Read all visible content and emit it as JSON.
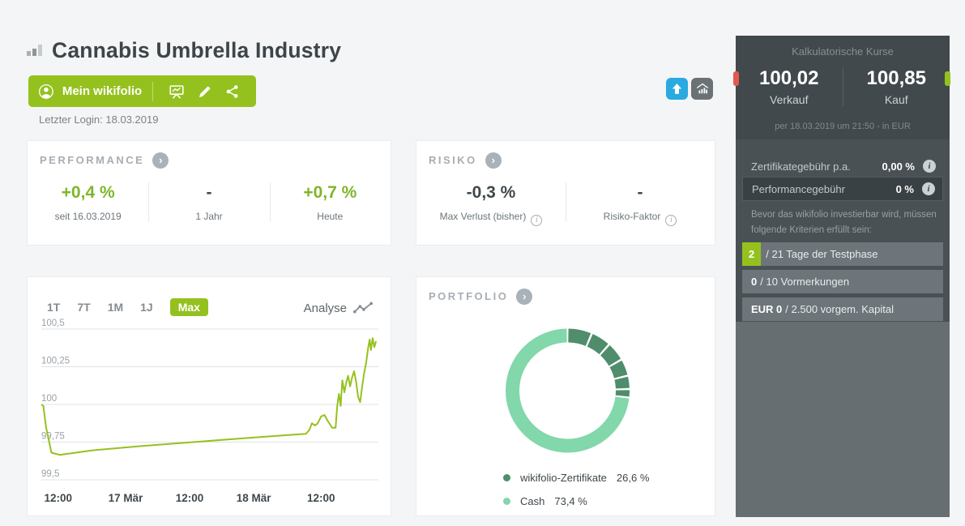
{
  "header": {
    "title": "Cannabis Umbrella Industry",
    "my_wikifolio_label": "Mein wikifolio",
    "last_login": "Letzter Login: 18.03.2019"
  },
  "performance": {
    "title": "PERFORMANCE",
    "items": [
      {
        "value": "+0,4 %",
        "label": "seit 16.03.2019"
      },
      {
        "value": "-",
        "label": "1 Jahr"
      },
      {
        "value": "+0,7 %",
        "label": "Heute"
      }
    ]
  },
  "risk": {
    "title": "RISIKO",
    "items": [
      {
        "value": "-0,3 %",
        "label": "Max Verlust (bisher)"
      },
      {
        "value": "-",
        "label": "Risiko-Faktor"
      }
    ]
  },
  "chart_card": {
    "ranges": [
      "1T",
      "7T",
      "1M",
      "1J",
      "Max"
    ],
    "selected_range": "Max",
    "analyse_label": "Analyse"
  },
  "chart_data": {
    "type": "line",
    "title": "wikifolio price history",
    "y_ticks": [
      "100,5",
      "100,25",
      "100",
      "99,75",
      "99,5"
    ],
    "ylim": [
      99.5,
      100.5
    ],
    "x_ticks": [
      "12:00",
      "17 Mär",
      "12:00",
      "18 Mär",
      "12:00"
    ],
    "x_tick_pos": [
      5,
      25,
      44,
      63,
      83
    ],
    "grid": true,
    "series": [
      {
        "name": "wikifolio",
        "color": "#95c11f",
        "points": [
          [
            0,
            100.0
          ],
          [
            0.6,
            99.99
          ],
          [
            1.4,
            99.85
          ],
          [
            3,
            99.68
          ],
          [
            5.5,
            99.665
          ],
          [
            15,
            99.695
          ],
          [
            30,
            99.725
          ],
          [
            45,
            99.75
          ],
          [
            60,
            99.775
          ],
          [
            72,
            99.795
          ],
          [
            78.5,
            99.805
          ],
          [
            79.5,
            99.83
          ],
          [
            80.3,
            99.875
          ],
          [
            81.2,
            99.86
          ],
          [
            82,
            99.875
          ],
          [
            83,
            99.92
          ],
          [
            84,
            99.93
          ],
          [
            85,
            99.89
          ],
          [
            86.3,
            99.845
          ],
          [
            87.3,
            99.845
          ],
          [
            87.8,
            99.99
          ],
          [
            88.3,
            100.07
          ],
          [
            88.8,
            99.99
          ],
          [
            89.3,
            100.16
          ],
          [
            89.9,
            100.08
          ],
          [
            90.4,
            100.14
          ],
          [
            91,
            100.19
          ],
          [
            91.6,
            100.12
          ],
          [
            92.2,
            100.18
          ],
          [
            92.8,
            100.22
          ],
          [
            93.4,
            100.15
          ],
          [
            94,
            100.05
          ],
          [
            94.6,
            100.015
          ],
          [
            95.2,
            100.12
          ],
          [
            95.8,
            100.21
          ],
          [
            96.4,
            100.28
          ],
          [
            97,
            100.38
          ],
          [
            97.4,
            100.43
          ],
          [
            97.8,
            100.36
          ],
          [
            98.3,
            100.44
          ],
          [
            98.8,
            100.38
          ],
          [
            99.3,
            100.42
          ]
        ]
      }
    ]
  },
  "portfolio": {
    "title": "PORTFOLIO",
    "legend": [
      {
        "label": "wikifolio-Zertifikate",
        "value": "26,6 %",
        "color": "#4f8d6c"
      },
      {
        "label": "Cash",
        "value": "73,4 %",
        "color": "#82d7ab"
      }
    ],
    "donut": {
      "dark_color": "#4f8d6c",
      "light_color": "#82d7ab",
      "dark_segments_deg": [
        [
          0.8,
          22
        ],
        [
          24,
          41
        ],
        [
          43,
          59
        ],
        [
          61,
          75
        ],
        [
          77,
          87.5
        ],
        [
          89.5,
          95.5
        ]
      ],
      "cash_arc_deg": [
        97.3,
        359.2
      ]
    }
  },
  "sidebar": {
    "title": "Kalkulatorische Kurse",
    "sell": {
      "value": "100,02",
      "label": "Verkauf"
    },
    "buy": {
      "value": "100,85",
      "label": "Kauf"
    },
    "as_of": "per 18.03.2019 um 21:50 - in EUR",
    "fees": [
      {
        "label": "Zertifikategebühr p.a.",
        "value": "0,00 %"
      },
      {
        "label": "Performancegebühr",
        "value": "0 %"
      }
    ],
    "criteria_intro_line1": "Bevor das wikifolio investierbar wird, müssen",
    "criteria_intro_line2": "folgende Kriterien erfüllt sein:",
    "criteria": [
      {
        "current": "2",
        "rest": "/ 21 Tage der Testphase"
      },
      {
        "current": "0",
        "rest": "/ 10 Vormerkungen"
      },
      {
        "current": "EUR 0",
        "rest": "/ 2.500 vorgem. Kapital"
      }
    ]
  },
  "colors": {
    "accent_green": "#95c11f",
    "value_green": "#7fb52a",
    "blue_button": "#29aae1",
    "gray_button": "#6a7276",
    "red_tab": "#e4584e",
    "sidebar_dark": "#42494c",
    "sidebar_mid": "#4a5155",
    "sidebar_light": "#666e72"
  }
}
